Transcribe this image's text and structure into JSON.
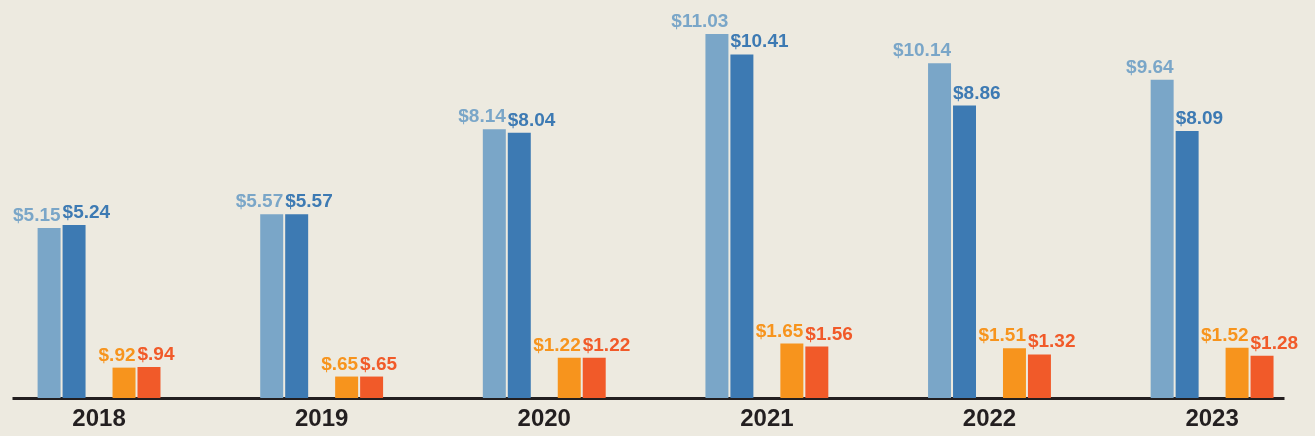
{
  "chart_data": {
    "type": "bar",
    "categories": [
      "2018",
      "2019",
      "2020",
      "2021",
      "2022",
      "2023"
    ],
    "series": [
      {
        "color": "#7aa6c8",
        "values": [
          5.15,
          5.57,
          8.14,
          11.03,
          10.14,
          9.64
        ],
        "value_labels": [
          "$5.15",
          "$5.57",
          "$8.14",
          "$11.03",
          "$10.14",
          "$9.64"
        ]
      },
      {
        "color": "#3d7ab3",
        "values": [
          5.24,
          5.57,
          8.04,
          10.41,
          8.86,
          8.09
        ],
        "value_labels": [
          "$5.24",
          "$5.57",
          "$8.04",
          "$10.41",
          "$8.86",
          "$8.09"
        ]
      },
      {
        "color": "#f7941d",
        "values": [
          0.92,
          0.65,
          1.22,
          1.65,
          1.51,
          1.52
        ],
        "value_labels": [
          "$.92",
          "$.65",
          "$1.22",
          "$1.65",
          "$1.51",
          "$1.52"
        ]
      },
      {
        "color": "#f15a29",
        "values": [
          0.94,
          0.65,
          1.22,
          1.56,
          1.32,
          1.28
        ],
        "value_labels": [
          "$.94",
          "$.65",
          "$1.22",
          "$1.56",
          "$1.32",
          "$1.28"
        ]
      }
    ],
    "legend": false
  }
}
